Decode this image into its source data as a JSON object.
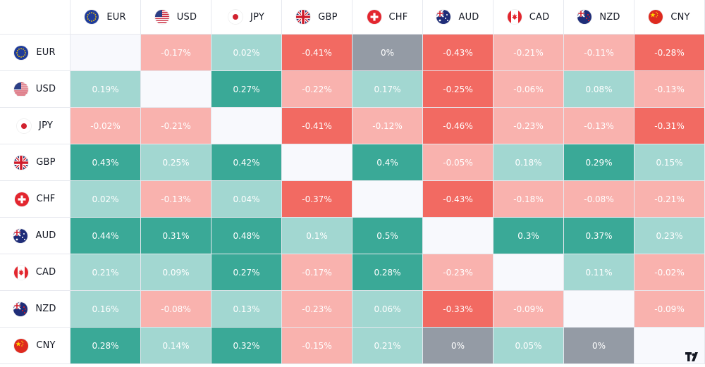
{
  "currencies": [
    "EUR",
    "USD",
    "JPY",
    "GBP",
    "CHF",
    "AUD",
    "CAD",
    "NZD",
    "CNY"
  ],
  "flags": {
    "EUR": "eu-flag-icon",
    "USD": "us-flag-icon",
    "JPY": "japan-flag-icon",
    "GBP": "uk-flag-icon",
    "CHF": "swiss-flag-icon",
    "AUD": "australia-flag-icon",
    "CAD": "canada-flag-icon",
    "NZD": "new-zealand-flag-icon",
    "CNY": "china-flag-icon"
  },
  "colors": {
    "strong_positive": "#3aa997",
    "positive": "#a2d7d1",
    "negative": "#f9b2ae",
    "strong_negative": "#f26a62",
    "neutral": "#949ba5",
    "diagonal": "#f8f9fd",
    "border": "#e6e8ee",
    "header_text": "#131722"
  },
  "matrix": [
    [
      null,
      "-0.17%",
      "0.02%",
      "-0.41%",
      "0%",
      "-0.43%",
      "-0.21%",
      "-0.11%",
      "-0.28%"
    ],
    [
      "0.19%",
      null,
      "0.27%",
      "-0.22%",
      "0.17%",
      "-0.25%",
      "-0.06%",
      "0.08%",
      "-0.13%"
    ],
    [
      "-0.02%",
      "-0.21%",
      null,
      "-0.41%",
      "-0.12%",
      "-0.46%",
      "-0.23%",
      "-0.13%",
      "-0.31%"
    ],
    [
      "0.43%",
      "0.25%",
      "0.42%",
      null,
      "0.4%",
      "-0.05%",
      "0.18%",
      "0.29%",
      "0.15%"
    ],
    [
      "0.02%",
      "-0.13%",
      "0.04%",
      "-0.37%",
      null,
      "-0.43%",
      "-0.18%",
      "-0.08%",
      "-0.21%"
    ],
    [
      "0.44%",
      "0.31%",
      "0.48%",
      "0.1%",
      "0.5%",
      null,
      "0.3%",
      "0.37%",
      "0.23%"
    ],
    [
      "0.21%",
      "0.09%",
      "0.27%",
      "-0.17%",
      "0.28%",
      "-0.23%",
      null,
      "0.11%",
      "-0.02%"
    ],
    [
      "0.16%",
      "-0.08%",
      "0.13%",
      "-0.23%",
      "0.06%",
      "-0.33%",
      "-0.09%",
      null,
      "-0.09%"
    ],
    [
      "0.28%",
      "0.14%",
      "0.32%",
      "-0.15%",
      "0.21%",
      "0%",
      "0.05%",
      "0%",
      null
    ]
  ],
  "shade": [
    [
      null,
      "negative",
      "positive",
      "strong_negative",
      "neutral",
      "strong_negative",
      "negative",
      "negative",
      "strong_negative"
    ],
    [
      "positive",
      null,
      "strong_positive",
      "negative",
      "positive",
      "strong_negative",
      "negative",
      "positive",
      "negative"
    ],
    [
      "negative",
      "negative",
      null,
      "strong_negative",
      "negative",
      "strong_negative",
      "negative",
      "negative",
      "strong_negative"
    ],
    [
      "strong_positive",
      "positive",
      "strong_positive",
      null,
      "strong_positive",
      "negative",
      "positive",
      "strong_positive",
      "positive"
    ],
    [
      "positive",
      "negative",
      "positive",
      "strong_negative",
      null,
      "strong_negative",
      "negative",
      "negative",
      "negative"
    ],
    [
      "strong_positive",
      "strong_positive",
      "strong_positive",
      "positive",
      "strong_positive",
      null,
      "strong_positive",
      "strong_positive",
      "positive"
    ],
    [
      "positive",
      "positive",
      "strong_positive",
      "negative",
      "strong_positive",
      "negative",
      null,
      "positive",
      "negative"
    ],
    [
      "positive",
      "negative",
      "positive",
      "negative",
      "positive",
      "strong_negative",
      "negative",
      null,
      "negative"
    ],
    [
      "strong_positive",
      "positive",
      "strong_positive",
      "negative",
      "positive",
      "neutral",
      "positive",
      "neutral",
      null
    ]
  ],
  "branding": {
    "logo": "tradingview-logo-icon"
  }
}
